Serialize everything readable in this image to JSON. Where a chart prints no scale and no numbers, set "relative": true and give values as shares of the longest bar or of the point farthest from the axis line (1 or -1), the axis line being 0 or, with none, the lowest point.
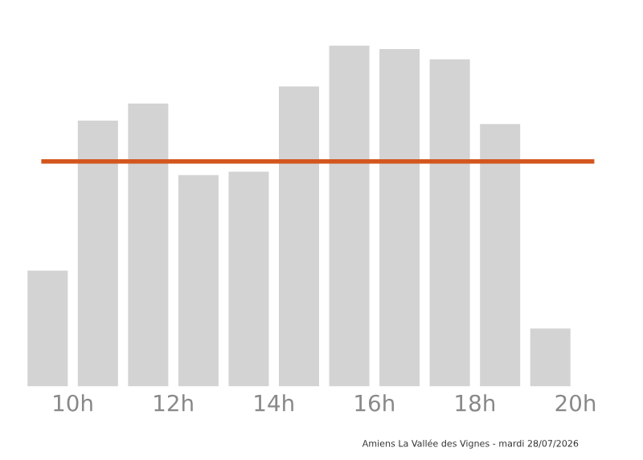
{
  "chart_data": {
    "type": "bar",
    "relative": true,
    "x": [
      9.5,
      10.5,
      11.5,
      12.5,
      13.5,
      14.5,
      15.5,
      16.5,
      17.5,
      18.5,
      19.5
    ],
    "values": [
      0.34,
      0.78,
      0.83,
      0.62,
      0.63,
      0.88,
      1,
      0.99,
      0.96,
      0.77,
      0.17
    ],
    "color": "#d3d3d3",
    "xlim": [
      9,
      20
    ],
    "xticks": [
      {
        "value": 10,
        "label": "10h"
      },
      {
        "value": 12,
        "label": "12h"
      },
      {
        "value": 14,
        "label": "14h"
      },
      {
        "value": 16,
        "label": "16h"
      },
      {
        "value": 18,
        "label": "18h"
      },
      {
        "value": 20,
        "label": "20h"
      }
    ],
    "ref_lines": [
      {
        "axis": "y",
        "value": 0.66,
        "color": "#d4561f"
      }
    ],
    "annotations": [
      "Amiens La Vallée des Vignes - mardi 28/07/2026"
    ]
  }
}
